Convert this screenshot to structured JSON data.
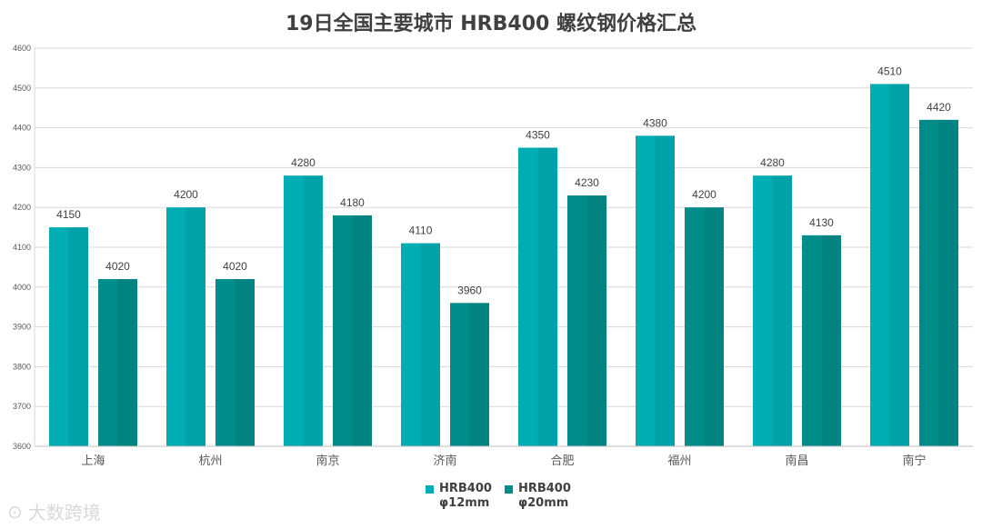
{
  "chart_data": {
    "type": "bar",
    "title": "19日全国主要城市 HRB400 螺纹钢价格汇总",
    "categories": [
      "上海",
      "杭州",
      "南京",
      "济南",
      "合肥",
      "福州",
      "南昌",
      "南宁"
    ],
    "series": [
      {
        "name": "HRB400\nφ12mm",
        "color": "#00ADB3",
        "values": [
          4150,
          4200,
          4280,
          4110,
          4350,
          4380,
          4280,
          4510
        ]
      },
      {
        "name": "HRB400\nφ20mm",
        "color": "#008C8A",
        "values": [
          4020,
          4020,
          4180,
          3960,
          4230,
          4200,
          4130,
          4420
        ]
      }
    ],
    "ylim": [
      3600,
      4600
    ],
    "yticks": [
      3600,
      3700,
      3800,
      3900,
      4000,
      4100,
      4200,
      4300,
      4400,
      4500,
      4600
    ],
    "grid": true,
    "legend_position": "bottom"
  },
  "watermark": {
    "text": "大数跨境"
  }
}
